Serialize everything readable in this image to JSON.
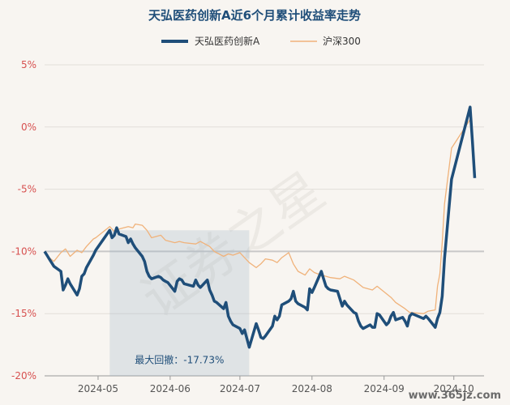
{
  "chart_data": {
    "type": "line",
    "title": "天弘医药创新A近6个月累计收益率走势",
    "ylabel": "",
    "xlabel": "",
    "ylim": [
      -20,
      5
    ],
    "y_ticks": [
      "5%",
      "0%",
      "-5%",
      "-10%",
      "-15%",
      "-20%"
    ],
    "y_tick_values": [
      5,
      0,
      -5,
      -10,
      -15,
      -20
    ],
    "x_range": [
      "2024-04-08",
      "2024-10-14"
    ],
    "x_ticks": [
      {
        "date": "2024-05-01",
        "label": "2024-05"
      },
      {
        "date": "2024-06-01",
        "label": "2024-06"
      },
      {
        "date": "2024-07-01",
        "label": "2024-07"
      },
      {
        "date": "2024-08-01",
        "label": "2024-08"
      },
      {
        "date": "2024-09-01",
        "label": "2024-09"
      },
      {
        "date": "2024-10-01",
        "label": "2024-10"
      }
    ],
    "grid": true,
    "legend_position": "top",
    "series": [
      {
        "name": "天弘医药创新A",
        "color": "#1f4e79",
        "points": [
          [
            "2024-04-08",
            -10.0
          ],
          [
            "2024-04-09",
            -10.3
          ],
          [
            "2024-04-10",
            -10.6
          ],
          [
            "2024-04-11",
            -10.9
          ],
          [
            "2024-04-12",
            -11.2
          ],
          [
            "2024-04-15",
            -11.6
          ],
          [
            "2024-04-16",
            -13.1
          ],
          [
            "2024-04-17",
            -12.7
          ],
          [
            "2024-04-18",
            -12.2
          ],
          [
            "2024-04-19",
            -12.6
          ],
          [
            "2024-04-22",
            -13.5
          ],
          [
            "2024-04-23",
            -13.0
          ],
          [
            "2024-04-24",
            -12.0
          ],
          [
            "2024-04-25",
            -11.8
          ],
          [
            "2024-04-26",
            -11.3
          ],
          [
            "2024-04-29",
            -10.3
          ],
          [
            "2024-04-30",
            -9.9
          ],
          [
            "2024-05-06",
            -8.3
          ],
          [
            "2024-05-07",
            -8.9
          ],
          [
            "2024-05-08",
            -8.7
          ],
          [
            "2024-05-09",
            -8.1
          ],
          [
            "2024-05-10",
            -8.6
          ],
          [
            "2024-05-13",
            -8.8
          ],
          [
            "2024-05-14",
            -9.3
          ],
          [
            "2024-05-15",
            -9.0
          ],
          [
            "2024-05-16",
            -9.4
          ],
          [
            "2024-05-17",
            -9.7
          ],
          [
            "2024-05-20",
            -10.4
          ],
          [
            "2024-05-21",
            -10.8
          ],
          [
            "2024-05-22",
            -11.6
          ],
          [
            "2024-05-23",
            -12.0
          ],
          [
            "2024-05-24",
            -12.2
          ],
          [
            "2024-05-27",
            -12.0
          ],
          [
            "2024-05-28",
            -12.1
          ],
          [
            "2024-05-29",
            -12.3
          ],
          [
            "2024-05-30",
            -12.4
          ],
          [
            "2024-05-31",
            -12.5
          ],
          [
            "2024-06-03",
            -13.2
          ],
          [
            "2024-06-04",
            -12.4
          ],
          [
            "2024-06-05",
            -12.2
          ],
          [
            "2024-06-06",
            -12.3
          ],
          [
            "2024-06-07",
            -12.6
          ],
          [
            "2024-06-11",
            -12.8
          ],
          [
            "2024-06-12",
            -12.3
          ],
          [
            "2024-06-13",
            -12.7
          ],
          [
            "2024-06-14",
            -12.9
          ],
          [
            "2024-06-17",
            -12.3
          ],
          [
            "2024-06-18",
            -13.1
          ],
          [
            "2024-06-19",
            -13.5
          ],
          [
            "2024-06-20",
            -14.0
          ],
          [
            "2024-06-21",
            -14.1
          ],
          [
            "2024-06-24",
            -14.6
          ],
          [
            "2024-06-25",
            -14.1
          ],
          [
            "2024-06-26",
            -15.2
          ],
          [
            "2024-06-27",
            -15.6
          ],
          [
            "2024-06-28",
            -15.9
          ],
          [
            "2024-07-01",
            -16.2
          ],
          [
            "2024-07-02",
            -16.6
          ],
          [
            "2024-07-03",
            -16.3
          ],
          [
            "2024-07-04",
            -17.0
          ],
          [
            "2024-07-05",
            -17.7
          ],
          [
            "2024-07-08",
            -15.8
          ],
          [
            "2024-07-09",
            -16.3
          ],
          [
            "2024-07-10",
            -16.9
          ],
          [
            "2024-07-11",
            -17.0
          ],
          [
            "2024-07-12",
            -16.8
          ],
          [
            "2024-07-15",
            -16.0
          ],
          [
            "2024-07-16",
            -15.2
          ],
          [
            "2024-07-17",
            -15.5
          ],
          [
            "2024-07-18",
            -15.2
          ],
          [
            "2024-07-19",
            -14.3
          ],
          [
            "2024-07-22",
            -14.0
          ],
          [
            "2024-07-23",
            -13.8
          ],
          [
            "2024-07-24",
            -13.2
          ],
          [
            "2024-07-25",
            -14.0
          ],
          [
            "2024-07-26",
            -14.2
          ],
          [
            "2024-07-29",
            -14.5
          ],
          [
            "2024-07-30",
            -14.7
          ],
          [
            "2024-07-31",
            -13.0
          ],
          [
            "2024-08-01",
            -13.3
          ],
          [
            "2024-08-02",
            -12.9
          ],
          [
            "2024-08-05",
            -11.6
          ],
          [
            "2024-08-06",
            -12.2
          ],
          [
            "2024-08-07",
            -12.8
          ],
          [
            "2024-08-08",
            -13.0
          ],
          [
            "2024-08-09",
            -13.1
          ],
          [
            "2024-08-12",
            -13.2
          ],
          [
            "2024-08-13",
            -13.8
          ],
          [
            "2024-08-14",
            -14.4
          ],
          [
            "2024-08-15",
            -14.0
          ],
          [
            "2024-08-16",
            -14.3
          ],
          [
            "2024-08-19",
            -14.9
          ],
          [
            "2024-08-20",
            -15.0
          ],
          [
            "2024-08-21",
            -15.6
          ],
          [
            "2024-08-22",
            -16.0
          ],
          [
            "2024-08-23",
            -16.2
          ],
          [
            "2024-08-26",
            -15.9
          ],
          [
            "2024-08-27",
            -16.1
          ],
          [
            "2024-08-28",
            -16.1
          ],
          [
            "2024-08-29",
            -15.0
          ],
          [
            "2024-08-30",
            -15.1
          ],
          [
            "2024-09-02",
            -15.9
          ],
          [
            "2024-09-03",
            -15.7
          ],
          [
            "2024-09-04",
            -15.2
          ],
          [
            "2024-09-05",
            -14.9
          ],
          [
            "2024-09-06",
            -15.5
          ],
          [
            "2024-09-09",
            -15.3
          ],
          [
            "2024-09-10",
            -15.6
          ],
          [
            "2024-09-11",
            -16.0
          ],
          [
            "2024-09-12",
            -15.2
          ],
          [
            "2024-09-13",
            -15.0
          ],
          [
            "2024-09-18",
            -15.4
          ],
          [
            "2024-09-19",
            -15.2
          ],
          [
            "2024-09-20",
            -15.4
          ],
          [
            "2024-09-23",
            -16.1
          ],
          [
            "2024-09-24",
            -15.4
          ],
          [
            "2024-09-25",
            -14.9
          ],
          [
            "2024-09-26",
            -13.6
          ],
          [
            "2024-09-27",
            -10.6
          ],
          [
            "2024-09-30",
            -4.2
          ],
          [
            "2024-10-08",
            1.6
          ],
          [
            "2024-10-09",
            -1.2
          ],
          [
            "2024-10-10",
            -4.1
          ]
        ]
      },
      {
        "name": "沪深300",
        "color": "#f0b27a",
        "points": [
          [
            "2024-04-08",
            -10.0
          ],
          [
            "2024-04-10",
            -10.5
          ],
          [
            "2024-04-12",
            -10.8
          ],
          [
            "2024-04-15",
            -10.1
          ],
          [
            "2024-04-17",
            -9.8
          ],
          [
            "2024-04-19",
            -10.4
          ],
          [
            "2024-04-22",
            -9.9
          ],
          [
            "2024-04-24",
            -10.1
          ],
          [
            "2024-04-26",
            -9.6
          ],
          [
            "2024-04-29",
            -9.0
          ],
          [
            "2024-04-30",
            -8.9
          ],
          [
            "2024-05-06",
            -8.0
          ],
          [
            "2024-05-08",
            -8.4
          ],
          [
            "2024-05-10",
            -8.2
          ],
          [
            "2024-05-14",
            -8.0
          ],
          [
            "2024-05-16",
            -8.1
          ],
          [
            "2024-05-17",
            -7.8
          ],
          [
            "2024-05-20",
            -7.9
          ],
          [
            "2024-05-22",
            -8.3
          ],
          [
            "2024-05-24",
            -8.9
          ],
          [
            "2024-05-28",
            -8.7
          ],
          [
            "2024-05-30",
            -9.1
          ],
          [
            "2024-06-03",
            -9.3
          ],
          [
            "2024-06-05",
            -9.2
          ],
          [
            "2024-06-07",
            -9.3
          ],
          [
            "2024-06-12",
            -9.4
          ],
          [
            "2024-06-14",
            -9.2
          ],
          [
            "2024-06-18",
            -9.6
          ],
          [
            "2024-06-20",
            -10.0
          ],
          [
            "2024-06-24",
            -10.4
          ],
          [
            "2024-06-26",
            -10.2
          ],
          [
            "2024-06-28",
            -10.3
          ],
          [
            "2024-07-01",
            -10.1
          ],
          [
            "2024-07-03",
            -10.5
          ],
          [
            "2024-07-05",
            -10.9
          ],
          [
            "2024-07-08",
            -11.3
          ],
          [
            "2024-07-10",
            -11.0
          ],
          [
            "2024-07-12",
            -10.6
          ],
          [
            "2024-07-15",
            -10.7
          ],
          [
            "2024-07-17",
            -10.9
          ],
          [
            "2024-07-19",
            -10.5
          ],
          [
            "2024-07-22",
            -10.1
          ],
          [
            "2024-07-24",
            -11.0
          ],
          [
            "2024-07-26",
            -11.6
          ],
          [
            "2024-07-29",
            -11.9
          ],
          [
            "2024-07-31",
            -11.4
          ],
          [
            "2024-08-02",
            -11.7
          ],
          [
            "2024-08-05",
            -11.9
          ],
          [
            "2024-08-07",
            -12.0
          ],
          [
            "2024-08-09",
            -12.1
          ],
          [
            "2024-08-13",
            -12.2
          ],
          [
            "2024-08-15",
            -12.0
          ],
          [
            "2024-08-19",
            -12.3
          ],
          [
            "2024-08-21",
            -12.6
          ],
          [
            "2024-08-23",
            -12.9
          ],
          [
            "2024-08-27",
            -13.1
          ],
          [
            "2024-08-29",
            -12.8
          ],
          [
            "2024-09-02",
            -13.4
          ],
          [
            "2024-09-04",
            -13.7
          ],
          [
            "2024-09-06",
            -14.1
          ],
          [
            "2024-09-10",
            -14.6
          ],
          [
            "2024-09-12",
            -14.9
          ],
          [
            "2024-09-18",
            -15.0
          ],
          [
            "2024-09-20",
            -14.8
          ],
          [
            "2024-09-23",
            -14.7
          ],
          [
            "2024-09-24",
            -12.8
          ],
          [
            "2024-09-25",
            -11.8
          ],
          [
            "2024-09-26",
            -9.3
          ],
          [
            "2024-09-27",
            -6.2
          ],
          [
            "2024-09-30",
            -1.7
          ],
          [
            "2024-10-08",
            0.6
          ],
          [
            "2024-10-09",
            -1.5
          ],
          [
            "2024-10-10",
            -2.9
          ]
        ]
      }
    ],
    "max_drawdown": {
      "label": "最大回撤：-17.73%",
      "start": "2024-05-06",
      "end": "2024-07-05",
      "peak": -8.3,
      "trough": -17.7
    }
  },
  "watermark": "证券之星",
  "site": "www.365jz.com"
}
